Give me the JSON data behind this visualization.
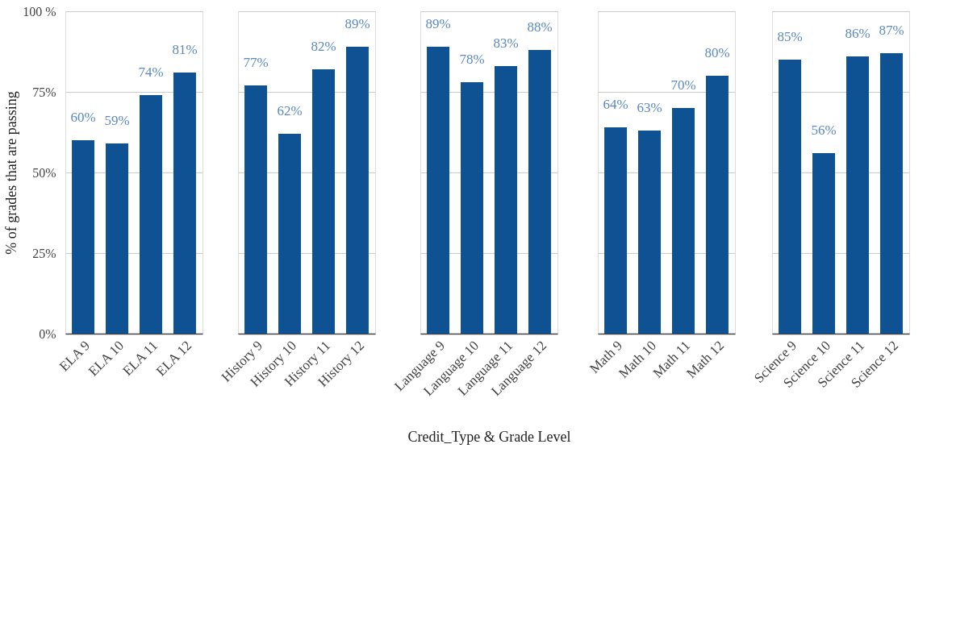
{
  "chart_data": [
    {
      "type": "bar",
      "ylabel": "% of grades that are passing",
      "categories": [
        "ELA 9",
        "ELA 10",
        "ELA 11",
        "ELA 12"
      ],
      "values": [
        60,
        59,
        74,
        81
      ],
      "color": "#0f5294",
      "value_labels": [
        "60%",
        "59%",
        "74%",
        "81%"
      ],
      "ylim": [
        0,
        100
      ],
      "yticks": [
        {
          "value": 0,
          "label": "0%"
        },
        {
          "value": 25,
          "label": "25%"
        },
        {
          "value": 50,
          "label": "50%"
        },
        {
          "value": 75,
          "label": "75%"
        },
        {
          "value": 100,
          "label": "100 %"
        }
      ],
      "grid": "y"
    },
    {
      "type": "bar",
      "categories": [
        "History 9",
        "History 10",
        "History 11",
        "History 12"
      ],
      "values": [
        77,
        62,
        82,
        89
      ],
      "color": "#0f5294",
      "value_labels": [
        "77%",
        "62%",
        "82%",
        "89%"
      ],
      "ylim": [
        0,
        100
      ],
      "grid": "y",
      "tick_labels": "x"
    },
    {
      "type": "bar",
      "xlabel": "Credit_Type & Grade Level",
      "categories": [
        "Language 9",
        "Language 10",
        "Language 11",
        "Language 12"
      ],
      "values": [
        89,
        78,
        83,
        88
      ],
      "color": "#0f5294",
      "value_labels": [
        "89%",
        "78%",
        "83%",
        "88%"
      ],
      "ylim": [
        0,
        100
      ],
      "grid": "y",
      "tick_labels": "x"
    },
    {
      "type": "bar",
      "categories": [
        "Math 9",
        "Math 10",
        "Math 11",
        "Math 12"
      ],
      "values": [
        64,
        63,
        70,
        80
      ],
      "color": "#0f5294",
      "value_labels": [
        "64%",
        "63%",
        "70%",
        "80%"
      ],
      "ylim": [
        0,
        100
      ],
      "grid": "y",
      "tick_labels": "x"
    },
    {
      "type": "bar",
      "categories": [
        "Science 9",
        "Science 10",
        "Science 11",
        "Science 12"
      ],
      "values": [
        85,
        56,
        86,
        87
      ],
      "color": "#0f5294",
      "value_labels": [
        "85%",
        "56%",
        "86%",
        "87%"
      ],
      "ylim": [
        0,
        100
      ],
      "grid": "y",
      "tick_labels": "x"
    }
  ]
}
